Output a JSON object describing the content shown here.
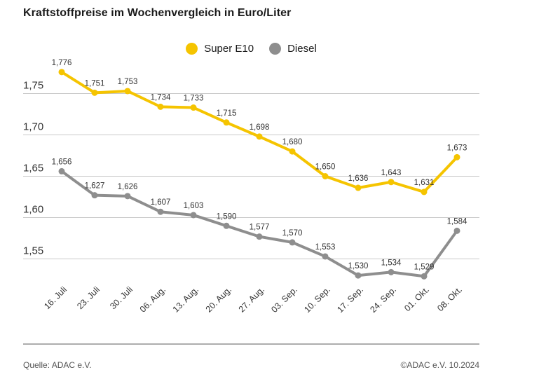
{
  "title": "Kraftstoffpreise im Wochenvergleich in Euro/Liter",
  "footer": {
    "source": "Quelle: ADAC e.V.",
    "copyright": "©ADAC e.V. 10.2024"
  },
  "colors": {
    "super_e10": "#F5C400",
    "diesel": "#8E8E8E",
    "gridline": "#C8C8C8",
    "axis_text": "#333333",
    "separator": "#ADADAD"
  },
  "chart_data": {
    "type": "line",
    "title": "Kraftstoffpreise im Wochenvergleich in Euro/Liter",
    "xlabel": "",
    "ylabel": "Euro/Liter",
    "categories": [
      "16. Juli",
      "23. Juli",
      "30. Juli",
      "06. Aug.",
      "13. Aug.",
      "20. Aug.",
      "27. Aug.",
      "03. Sep.",
      "10. Sep.",
      "17. Sep.",
      "24. Sep.",
      "01. Okt.",
      "08. Okt."
    ],
    "series": [
      {
        "name": "Super E10",
        "color": "#F5C400",
        "values": [
          1.776,
          1.751,
          1.753,
          1.734,
          1.733,
          1.715,
          1.698,
          1.68,
          1.65,
          1.636,
          1.643,
          1.631,
          1.673
        ]
      },
      {
        "name": "Diesel",
        "color": "#8E8E8E",
        "values": [
          1.656,
          1.627,
          1.626,
          1.607,
          1.603,
          1.59,
          1.577,
          1.57,
          1.553,
          1.53,
          1.534,
          1.529,
          1.584
        ]
      }
    ],
    "yticks": [
      1.75,
      1.7,
      1.65,
      1.6,
      1.55
    ],
    "ylim": [
      1.5,
      1.8
    ],
    "grid": true,
    "legend_position": "top-center",
    "value_labels": true,
    "decimal_separator": ","
  }
}
